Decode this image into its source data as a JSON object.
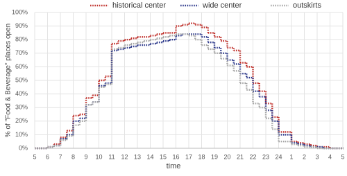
{
  "chart_data": {
    "type": "step-line",
    "x_label": "time",
    "y_label": "% of \"Food & Beverage\" places open",
    "categories": [
      "5",
      null,
      "6",
      null,
      "7",
      null,
      "8",
      null,
      "9",
      null,
      "10",
      null,
      "11",
      null,
      "12",
      null,
      "13",
      null,
      "14",
      null,
      "15",
      null,
      "16",
      null,
      "17",
      null,
      "18",
      null,
      "19",
      null,
      "20",
      null,
      "21",
      null,
      "22",
      null,
      "23",
      null,
      "24",
      null,
      "1",
      null,
      "2",
      null,
      "3",
      null,
      "4",
      null,
      "5"
    ],
    "series": [
      {
        "name": "historical center",
        "color": "#c0302b",
        "values": [
          0,
          0,
          1,
          3,
          8,
          13,
          24,
          25,
          37,
          39,
          50,
          53,
          77,
          79,
          80,
          81,
          82,
          82,
          83,
          84,
          85,
          85,
          90,
          91,
          92,
          91,
          89,
          85,
          82,
          79,
          74,
          72,
          63,
          60,
          48,
          42,
          33,
          23,
          12,
          12,
          5,
          4,
          3,
          2,
          1,
          1,
          0,
          0,
          0
        ]
      },
      {
        "name": "wide center",
        "color": "#2e3a8c",
        "values": [
          0,
          0,
          1,
          2,
          7,
          10,
          20,
          22,
          32,
          34,
          46,
          48,
          72,
          73,
          74,
          75,
          76,
          76,
          77,
          78,
          79,
          80,
          83,
          84,
          84,
          84,
          82,
          78,
          74,
          70,
          65,
          62,
          55,
          52,
          42,
          38,
          28,
          20,
          10,
          10,
          4,
          3,
          2,
          1,
          1,
          0,
          0,
          0,
          0
        ]
      },
      {
        "name": "outskirts",
        "color": "#a6a6a6",
        "values": [
          0,
          0,
          1,
          2,
          6,
          9,
          17,
          20,
          32,
          34,
          45,
          47,
          73,
          74,
          76,
          77,
          78,
          79,
          80,
          81,
          82,
          83,
          84,
          84,
          83,
          80,
          76,
          73,
          70,
          66,
          61,
          57,
          48,
          43,
          33,
          30,
          22,
          14,
          5,
          5,
          3,
          2,
          1,
          1,
          0,
          0,
          0,
          0,
          0
        ]
      }
    ],
    "ylim": [
      0,
      100
    ],
    "yticks": [
      {
        "value": 0,
        "label": "0%"
      },
      {
        "value": 10,
        "label": "10%"
      },
      {
        "value": 20,
        "label": "20%"
      },
      {
        "value": 30,
        "label": "30%"
      },
      {
        "value": 40,
        "label": "40%"
      },
      {
        "value": 50,
        "label": "50%"
      },
      {
        "value": 60,
        "label": "60%"
      },
      {
        "value": 70,
        "label": "70%"
      },
      {
        "value": 80,
        "label": "80%"
      },
      {
        "value": 90,
        "label": "90%"
      },
      {
        "value": 100,
        "label": "100%"
      }
    ],
    "grid": true
  }
}
